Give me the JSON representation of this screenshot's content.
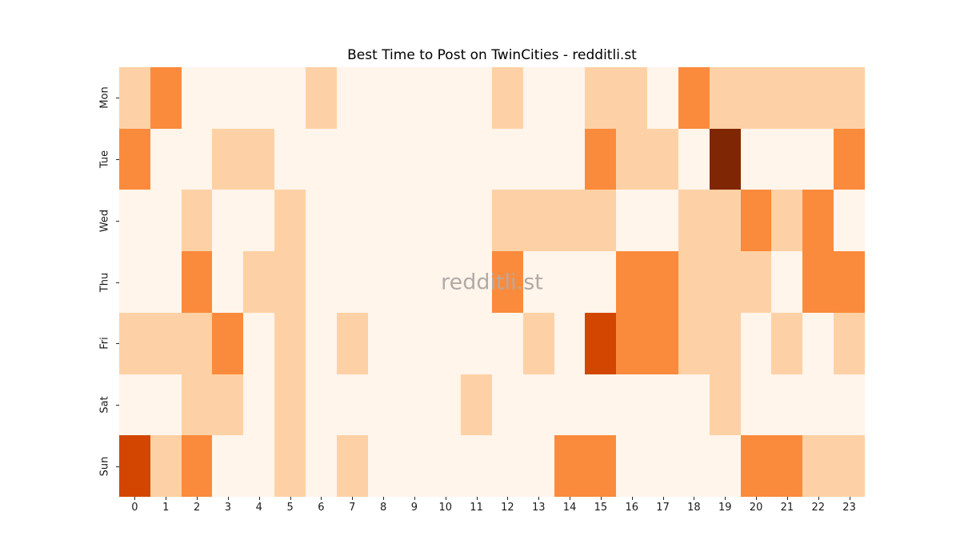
{
  "page": {
    "background": "#ffffff"
  },
  "chart_data": {
    "type": "heatmap",
    "title": "Best Time to Post on TwinCities - redditli.st",
    "watermark": "redditli.st",
    "x_labels": [
      "0",
      "1",
      "2",
      "3",
      "4",
      "5",
      "6",
      "7",
      "8",
      "9",
      "10",
      "11",
      "12",
      "13",
      "14",
      "15",
      "16",
      "17",
      "18",
      "19",
      "20",
      "21",
      "22",
      "23"
    ],
    "y_labels": [
      "Mon",
      "Tue",
      "Wed",
      "Thu",
      "Fri",
      "Sat",
      "Sun"
    ],
    "legend": "none",
    "grid": false,
    "colormap": "Oranges",
    "palette": {
      "0": "#fff5eb",
      "1": "#fdd1a5",
      "2": "#fb8b3c",
      "3": "#d34601",
      "4": "#7f2704"
    },
    "palette_note": "intensity level 0 = lightest (lowest activity) to 4 = darkest (highest activity)",
    "values": [
      [
        1,
        2,
        0,
        0,
        0,
        0,
        1,
        0,
        0,
        0,
        0,
        0,
        1,
        0,
        0,
        1,
        1,
        0,
        2,
        1,
        1,
        1,
        1,
        1
      ],
      [
        2,
        0,
        0,
        1,
        1,
        0,
        0,
        0,
        0,
        0,
        0,
        0,
        0,
        0,
        0,
        2,
        1,
        1,
        0,
        4,
        0,
        0,
        0,
        2
      ],
      [
        0,
        0,
        1,
        0,
        0,
        1,
        0,
        0,
        0,
        0,
        0,
        0,
        1,
        1,
        1,
        1,
        0,
        0,
        1,
        1,
        2,
        1,
        2,
        0
      ],
      [
        0,
        0,
        2,
        0,
        1,
        1,
        0,
        0,
        0,
        0,
        0,
        0,
        2,
        0,
        0,
        0,
        2,
        2,
        1,
        1,
        1,
        0,
        2,
        2
      ],
      [
        1,
        1,
        1,
        2,
        0,
        1,
        0,
        1,
        0,
        0,
        0,
        0,
        0,
        1,
        0,
        3,
        2,
        2,
        1,
        1,
        0,
        1,
        0,
        1
      ],
      [
        0,
        0,
        1,
        1,
        0,
        1,
        0,
        0,
        0,
        0,
        0,
        1,
        0,
        0,
        0,
        0,
        0,
        0,
        0,
        1,
        0,
        0,
        0,
        0
      ],
      [
        3,
        1,
        2,
        0,
        0,
        1,
        0,
        1,
        0,
        0,
        0,
        0,
        0,
        0,
        2,
        2,
        0,
        0,
        0,
        0,
        2,
        2,
        1,
        1
      ]
    ]
  }
}
